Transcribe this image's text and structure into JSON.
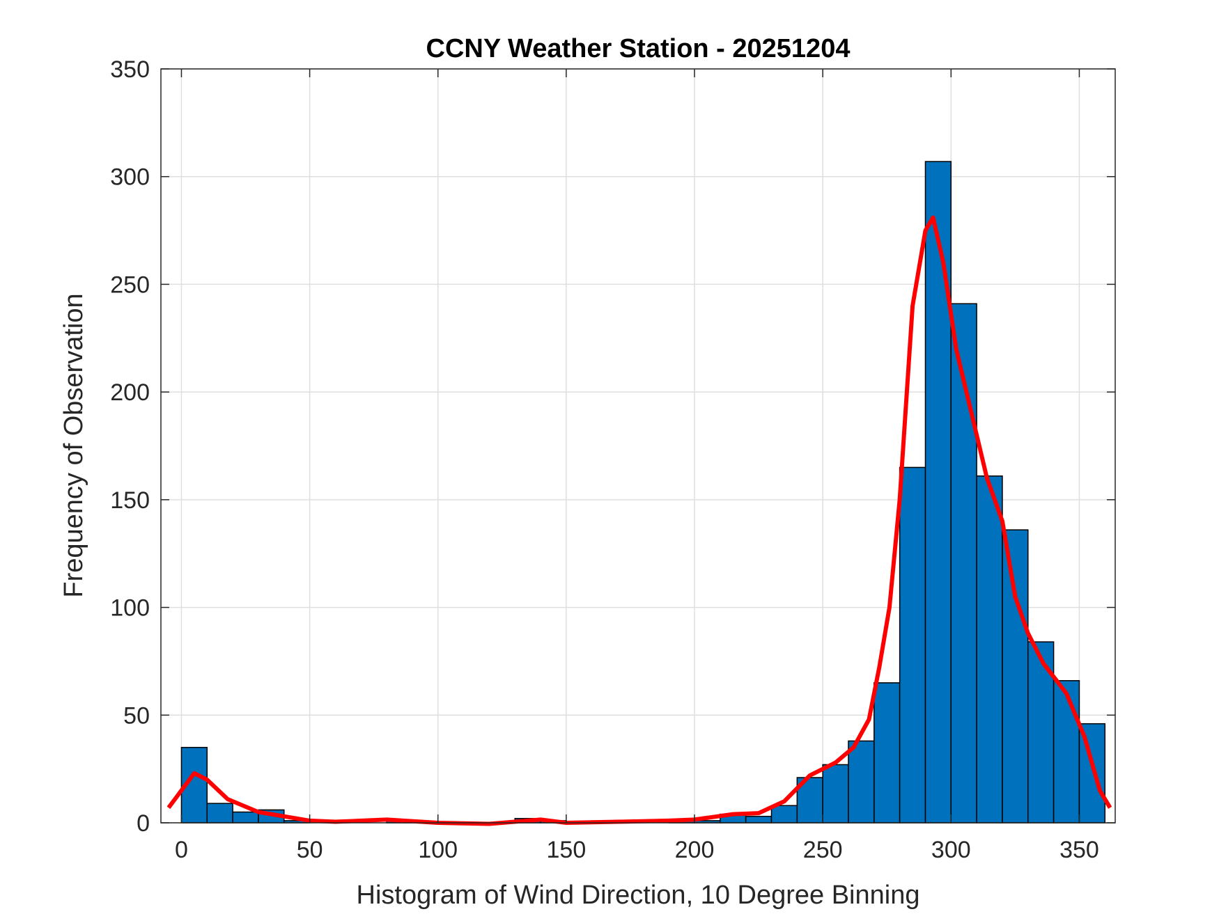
{
  "chart_data": {
    "type": "bar",
    "title": "CCNY Weather Station - 20251204",
    "xlabel": "Histogram of Wind Direction, 10 Degree Binning",
    "ylabel": "Frequency of Observation",
    "xlim": [
      -8,
      364
    ],
    "ylim": [
      0,
      350
    ],
    "xticks": [
      0,
      50,
      100,
      150,
      200,
      250,
      300,
      350
    ],
    "yticks": [
      0,
      50,
      100,
      150,
      200,
      250,
      300,
      350
    ],
    "grid": true,
    "bin_width": 10,
    "bin_edges_start": [
      0,
      10,
      20,
      30,
      40,
      50,
      60,
      70,
      80,
      90,
      100,
      110,
      120,
      130,
      140,
      150,
      160,
      170,
      180,
      190,
      200,
      210,
      220,
      230,
      240,
      250,
      260,
      270,
      280,
      290,
      300,
      310,
      320,
      330,
      340,
      350
    ],
    "values": [
      35,
      9,
      5,
      6,
      1,
      0,
      0,
      0,
      1,
      0,
      0,
      0,
      0,
      2,
      1,
      0,
      0,
      0,
      0,
      1,
      1,
      4,
      3,
      8,
      21,
      27,
      38,
      65,
      165,
      307,
      241,
      161,
      136,
      84,
      66,
      46
    ],
    "curve": {
      "x": [
        -5,
        5,
        10,
        18,
        30,
        40,
        50,
        60,
        80,
        100,
        120,
        140,
        150,
        170,
        190,
        200,
        215,
        225,
        235,
        245,
        255,
        262,
        268,
        272,
        276,
        280,
        285,
        290,
        293,
        297,
        302,
        308,
        314,
        320,
        325,
        330,
        336,
        345,
        352,
        358,
        362
      ],
      "y": [
        7,
        23,
        20,
        11,
        5,
        3,
        1,
        0.5,
        1.5,
        0,
        -0.5,
        1.5,
        0,
        0.5,
        1,
        1.5,
        4,
        4.5,
        10,
        22,
        28,
        35,
        48,
        72,
        100,
        150,
        240,
        275,
        281,
        260,
        220,
        190,
        160,
        140,
        105,
        88,
        74,
        60,
        40,
        15,
        7
      ]
    },
    "colors": {
      "bars": "#0072BD",
      "bar_edge": "#000000",
      "curve": "#FF0000",
      "grid": "#DFDFDF",
      "axes": "#262626"
    }
  }
}
